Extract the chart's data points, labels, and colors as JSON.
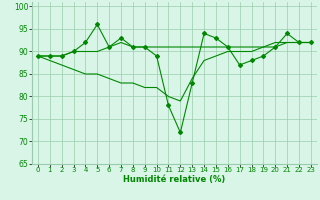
{
  "line1": {
    "x": [
      0,
      1,
      2,
      3,
      4,
      5,
      6,
      7,
      8,
      9,
      10,
      11,
      12,
      13,
      14,
      15,
      16,
      17,
      18,
      19,
      20,
      21,
      22,
      23
    ],
    "y": [
      89,
      89,
      89,
      90,
      92,
      96,
      91,
      93,
      91,
      91,
      89,
      78,
      72,
      83,
      94,
      93,
      91,
      87,
      88,
      89,
      91,
      94,
      92,
      92
    ]
  },
  "line2": {
    "x": [
      0,
      1,
      2,
      3,
      4,
      5,
      6,
      7,
      8,
      9,
      10,
      11,
      12,
      13,
      14,
      15,
      16,
      17,
      18,
      19,
      20,
      21,
      22,
      23
    ],
    "y": [
      89,
      89,
      89,
      90,
      90,
      90,
      91,
      92,
      91,
      91,
      91,
      91,
      91,
      91,
      91,
      91,
      91,
      91,
      91,
      91,
      92,
      92,
      92,
      92
    ]
  },
  "line3": {
    "x": [
      0,
      1,
      2,
      3,
      4,
      5,
      6,
      7,
      8,
      9,
      10,
      11,
      12,
      13,
      14,
      15,
      16,
      17,
      18,
      19,
      20,
      21,
      22,
      23
    ],
    "y": [
      89,
      88,
      87,
      86,
      85,
      85,
      84,
      83,
      83,
      82,
      82,
      80,
      79,
      84,
      88,
      89,
      90,
      90,
      90,
      91,
      91,
      92,
      92,
      92
    ]
  },
  "line_color": "#008800",
  "bg_color": "#d8f5e8",
  "grid_color": "#99ccaa",
  "xlabel": "Humidité relative (%)",
  "ylim": [
    65,
    101
  ],
  "yticks": [
    65,
    70,
    75,
    80,
    85,
    90,
    95,
    100
  ],
  "xticks": [
    0,
    1,
    2,
    3,
    4,
    5,
    6,
    7,
    8,
    9,
    10,
    11,
    12,
    13,
    14,
    15,
    16,
    17,
    18,
    19,
    20,
    21,
    22,
    23
  ],
  "marker": "D",
  "markersize": 2.0,
  "linewidth": 0.8,
  "tick_fontsize": 5.0,
  "xlabel_fontsize": 6.0
}
